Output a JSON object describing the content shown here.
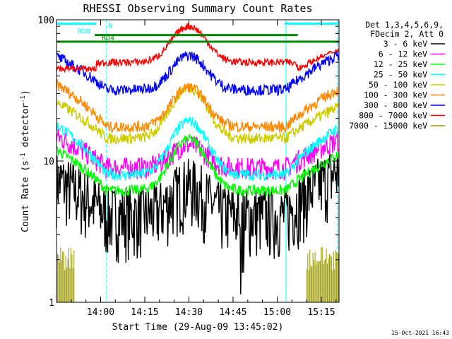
{
  "chart_data": {
    "type": "line",
    "title": "RHESSI Observing Summary Count Rates",
    "xlabel": "Start Time (29-Aug-09 13:45:02)",
    "ylabel": "Count Rate (s⁻¹ detector⁻¹)",
    "ylabel_main": "Count Rate (s",
    "ylabel_sup1": "-1",
    "ylabel_mid": " detector",
    "ylabel_sup2": "-1",
    "ylabel_end": ")",
    "y_scale": "log",
    "ylim": [
      1,
      100
    ],
    "xlim_minutes": [
      0,
      96
    ],
    "x_ticks": [
      {
        "label": "14:00",
        "minutes": 15
      },
      {
        "label": "14:15",
        "minutes": 30
      },
      {
        "label": "14:30",
        "minutes": 45
      },
      {
        "label": "14:45",
        "minutes": 60
      },
      {
        "label": "15:00",
        "minutes": 75
      },
      {
        "label": "15:15",
        "minutes": 90
      }
    ],
    "y_ticks": [
      {
        "label": "1",
        "value": 1
      },
      {
        "label": "10",
        "value": 10
      },
      {
        "label": "100",
        "value": 100
      }
    ],
    "legend_header": [
      "Det 1,3,4,5,6,9,",
      "FDecim 2, Att 0"
    ],
    "legend_position": "right",
    "series": [
      {
        "name": "3 - 6 keV",
        "color": "#000000",
        "base": 4.2,
        "peak": 1.6,
        "pre": 7.5,
        "post": 8.5
      },
      {
        "name": "6 - 12 keV",
        "color": "#ff00ff",
        "base": 9.0,
        "peak": 1.45,
        "pre": 15,
        "post": 14
      },
      {
        "name": "12 - 25 keV",
        "color": "#00ff00",
        "base": 6.2,
        "peak": 2.3,
        "pre": 12,
        "post": 11
      },
      {
        "name": "25 - 50 keV",
        "color": "#00ffff",
        "base": 8.0,
        "peak": 2.4,
        "pre": 18,
        "post": 17
      },
      {
        "name": "50 - 100 keV",
        "color": "#cccc00",
        "base": 14.5,
        "peak": 2.3,
        "pre": 26,
        "post": 24
      },
      {
        "name": "100 - 300 keV",
        "color": "#ff8800",
        "base": 17.5,
        "peak": 1.9,
        "pre": 35,
        "post": 32
      },
      {
        "name": "300 - 800 keV",
        "color": "#0000ff",
        "base": 32,
        "peak": 1.75,
        "pre": 55,
        "post": 56
      },
      {
        "name": "800 - 7000 keV",
        "color": "#ff0000",
        "base": 50,
        "peak": 1.8,
        "pre": 45,
        "post": 45
      },
      {
        "name": "7000 - 15000 keV",
        "color": "#999900",
        "base": 1,
        "peak": 1,
        "pre": 2.1,
        "post": 2.3
      }
    ],
    "annotations": [
      {
        "label": "RD0",
        "color": "#00ffff",
        "value": 94,
        "x_start": 0,
        "x_end": 96
      },
      {
        "label": "N",
        "color": "#00ffff",
        "value": 94,
        "x_start": 0,
        "x_end": 96
      },
      {
        "label": "RD4",
        "color": "#008800",
        "value": 70,
        "x_start": 0,
        "x_end": 96
      }
    ],
    "vlines_minutes": [
      0,
      17,
      78,
      95.5
    ],
    "timestamp": "15-Oct-2021 16:43"
  }
}
